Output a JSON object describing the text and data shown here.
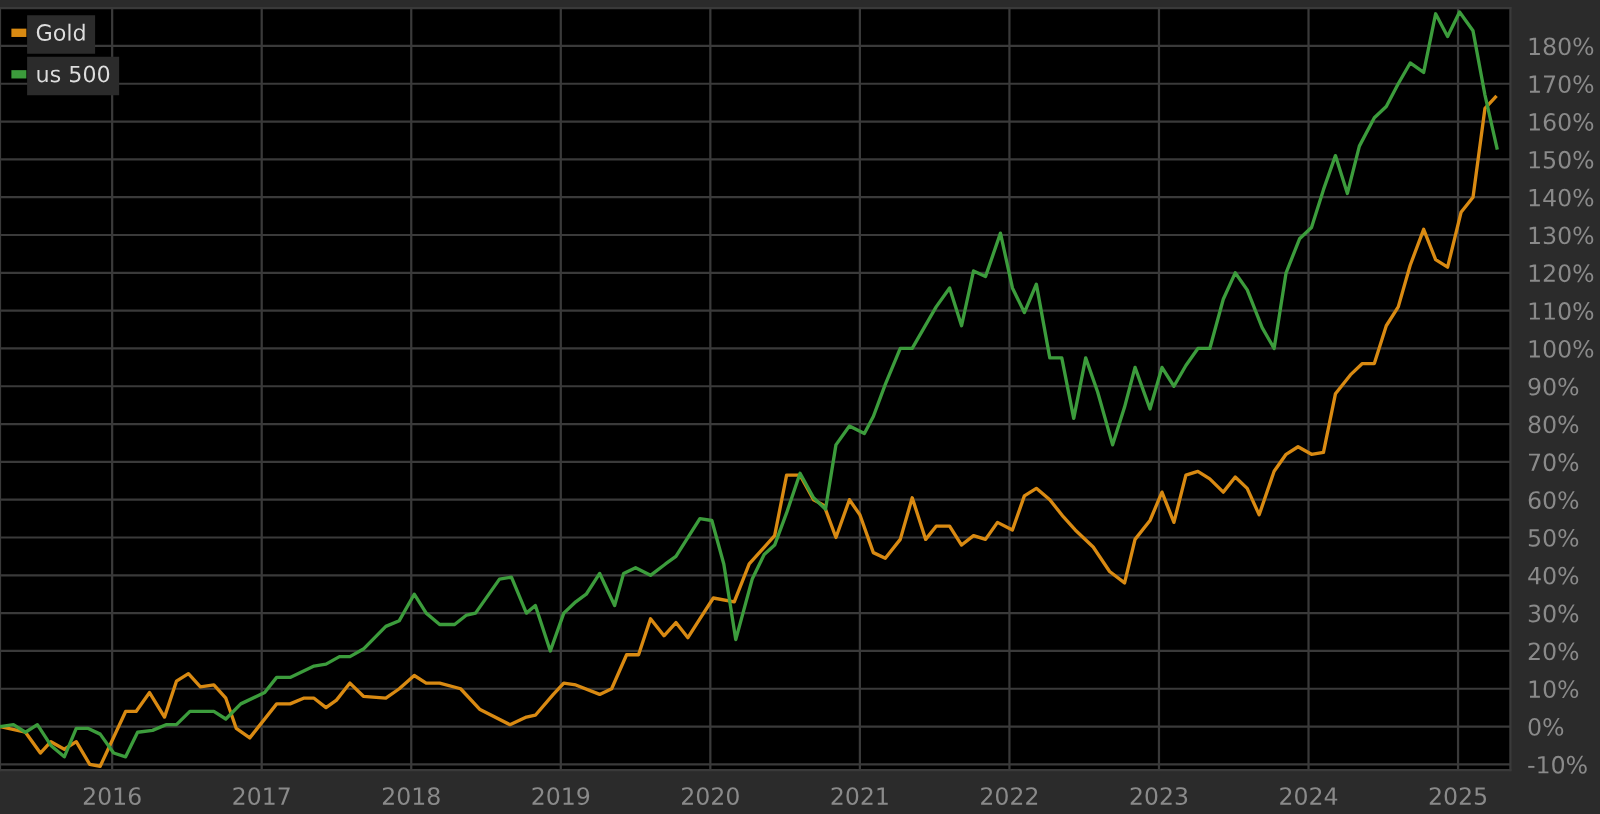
{
  "chart_data": {
    "type": "line",
    "legend": "top left",
    "grid": true,
    "line_style": "solid",
    "marker": "none",
    "xlim": [
      2015.25,
      2025.35
    ],
    "xticks": [
      2016,
      2017,
      2018,
      2019,
      2020,
      2021,
      2022,
      2023,
      2024,
      2025
    ],
    "ylim": [
      -11.5,
      190
    ],
    "yticks": [
      {
        "value": -10,
        "label": "-10%"
      },
      {
        "value": 0,
        "label": "0%"
      },
      {
        "value": 10,
        "label": "10%"
      },
      {
        "value": 20,
        "label": "20%"
      },
      {
        "value": 30,
        "label": "30%"
      },
      {
        "value": 40,
        "label": "40%"
      },
      {
        "value": 50,
        "label": "50%"
      },
      {
        "value": 60,
        "label": "60%"
      },
      {
        "value": 70,
        "label": "70%"
      },
      {
        "value": 80,
        "label": "80%"
      },
      {
        "value": 90,
        "label": "90%"
      },
      {
        "value": 100,
        "label": "100%"
      },
      {
        "value": 110,
        "label": "110%"
      },
      {
        "value": 120,
        "label": "120%"
      },
      {
        "value": 130,
        "label": "130%"
      },
      {
        "value": 140,
        "label": "140%"
      },
      {
        "value": 150,
        "label": "150%"
      },
      {
        "value": 160,
        "label": "160%"
      },
      {
        "value": 170,
        "label": "170%"
      },
      {
        "value": 180,
        "label": "180%"
      }
    ],
    "series": [
      {
        "name": "Gold",
        "color": "#d98a12",
        "x": [
          2015.25,
          2015.42,
          2015.52,
          2015.59,
          2015.68,
          2015.76,
          2015.85,
          2015.92,
          2016.09,
          2016.16,
          2016.25,
          2016.35,
          2016.43,
          2016.51,
          2016.59,
          2016.68,
          2016.76,
          2016.83,
          2016.92,
          2017.1,
          2017.19,
          2017.28,
          2017.35,
          2017.43,
          2017.5,
          2017.59,
          2017.68,
          2017.83,
          2017.92,
          2018.02,
          2018.1,
          2018.19,
          2018.33,
          2018.46,
          2018.66,
          2018.77,
          2018.83,
          2018.95,
          2019.02,
          2019.1,
          2019.26,
          2019.34,
          2019.44,
          2019.52,
          2019.6,
          2019.69,
          2019.77,
          2019.85,
          2019.93,
          2020.02,
          2020.16,
          2020.26,
          2020.43,
          2020.51,
          2020.6,
          2020.69,
          2020.76,
          2020.84,
          2020.93,
          2021.0,
          2021.09,
          2021.17,
          2021.27,
          2021.35,
          2021.44,
          2021.51,
          2021.6,
          2021.68,
          2021.76,
          2021.84,
          2021.92,
          2022.02,
          2022.1,
          2022.18,
          2022.27,
          2022.36,
          2022.44,
          2022.56,
          2022.67,
          2022.77,
          2022.84,
          2022.94,
          2023.02,
          2023.1,
          2023.18,
          2023.26,
          2023.34,
          2023.43,
          2023.51,
          2023.59,
          2023.67,
          2023.77,
          2023.85,
          2023.93,
          2024.02,
          2024.1,
          2024.18,
          2024.28,
          2024.36,
          2024.44,
          2024.52,
          2024.6,
          2024.68,
          2024.77,
          2024.85,
          2024.93,
          2025.02,
          2025.1,
          2025.18,
          2025.25
        ],
        "values": [
          0,
          -1.5,
          -7,
          -4,
          -6,
          -4,
          -10,
          -10.5,
          4,
          4,
          9,
          2.5,
          12,
          14,
          10.5,
          11,
          7.5,
          -0.5,
          -3,
          6,
          6,
          7.5,
          7.5,
          5,
          7,
          11.5,
          8,
          7.5,
          10,
          13.5,
          11.5,
          11.5,
          10,
          4.5,
          0.5,
          2.5,
          3,
          8.5,
          11.5,
          11,
          8.5,
          10,
          19,
          19,
          28.5,
          24,
          27.5,
          23.5,
          28.5,
          34,
          33,
          43,
          50.5,
          66.5,
          66.5,
          60,
          58.5,
          50,
          60,
          56,
          46,
          44.5,
          49.5,
          60.5,
          49.5,
          53,
          53,
          48,
          50.5,
          49.5,
          54,
          52,
          61,
          63,
          60,
          55.5,
          52,
          47.5,
          41,
          38,
          49.5,
          54.5,
          62,
          54,
          66.5,
          67.5,
          65.5,
          62,
          66,
          63,
          56,
          67.5,
          72,
          74,
          72,
          72.5,
          88,
          93,
          96,
          96,
          106,
          111,
          122,
          131.5,
          123.5,
          121.5,
          136,
          140,
          163.5,
          166.5
        ]
      },
      {
        "name": "us 500",
        "color": "#3c9c3c",
        "x": [
          2015.25,
          2015.34,
          2015.42,
          2015.5,
          2015.59,
          2015.68,
          2015.76,
          2015.84,
          2015.92,
          2016.01,
          2016.09,
          2016.17,
          2016.27,
          2016.36,
          2016.43,
          2016.52,
          2016.68,
          2016.76,
          2016.86,
          2017.02,
          2017.1,
          2017.19,
          2017.35,
          2017.43,
          2017.52,
          2017.59,
          2017.68,
          2017.83,
          2017.92,
          2018.02,
          2018.1,
          2018.19,
          2018.29,
          2018.37,
          2018.43,
          2018.59,
          2018.67,
          2018.77,
          2018.83,
          2018.93,
          2019.02,
          2019.1,
          2019.17,
          2019.26,
          2019.36,
          2019.42,
          2019.5,
          2019.6,
          2019.7,
          2019.77,
          2019.93,
          2020.01,
          2020.09,
          2020.17,
          2020.28,
          2020.36,
          2020.43,
          2020.51,
          2020.6,
          2020.69,
          2020.77,
          2020.84,
          2020.93,
          2021.03,
          2021.09,
          2021.17,
          2021.27,
          2021.35,
          2021.43,
          2021.51,
          2021.6,
          2021.68,
          2021.76,
          2021.84,
          2021.94,
          2022.02,
          2022.1,
          2022.18,
          2022.27,
          2022.35,
          2022.43,
          2022.51,
          2022.59,
          2022.69,
          2022.77,
          2022.84,
          2022.94,
          2023.02,
          2023.1,
          2023.18,
          2023.26,
          2023.34,
          2023.43,
          2023.51,
          2023.59,
          2023.69,
          2023.77,
          2023.85,
          2023.94,
          2024.02,
          2024.1,
          2024.18,
          2024.26,
          2024.34,
          2024.44,
          2024.52,
          2024.6,
          2024.68,
          2024.77,
          2024.85,
          2024.93,
          2025.01,
          2025.1,
          2025.18,
          2025.26
        ],
        "values": [
          0,
          0.5,
          -1.5,
          0.5,
          -5,
          -8,
          -0.5,
          -0.5,
          -2,
          -7,
          -8,
          -1.5,
          -1,
          0.5,
          0.5,
          4,
          4,
          2,
          6,
          9,
          13,
          13,
          16,
          16.5,
          18.5,
          18.5,
          20.5,
          26.5,
          28,
          35,
          30,
          27,
          27,
          29.5,
          30,
          39,
          39.5,
          30,
          32,
          20,
          30,
          33,
          35,
          40.5,
          32,
          40.5,
          42,
          40,
          43,
          45,
          55,
          54.5,
          43,
          23,
          39,
          45.5,
          48,
          56.5,
          67,
          60.5,
          57.5,
          74.5,
          79.5,
          77.5,
          82,
          90.5,
          100,
          100,
          105.5,
          111,
          116,
          106,
          120.5,
          119,
          130.5,
          116,
          109.5,
          117,
          97.5,
          97.5,
          81.5,
          97.5,
          88.5,
          74.5,
          84.5,
          95,
          84,
          95,
          90,
          95.5,
          100,
          100,
          113,
          120,
          115.5,
          105.5,
          100,
          120,
          129,
          132,
          142,
          151,
          141,
          153.5,
          161,
          164,
          170,
          175.5,
          173,
          188.5,
          182.5,
          189,
          184,
          167,
          153
        ]
      }
    ]
  }
}
